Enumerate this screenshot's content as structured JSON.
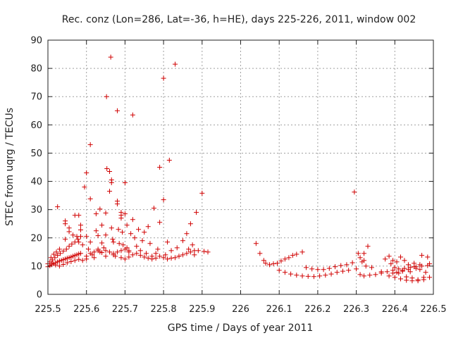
{
  "chart_data": {
    "type": "scatter",
    "title": "Rec. conz (Lon=286, Lat=-36, h=HE), days 225-226, 2011, window 002",
    "xlabel": "GPS time / Days of year 2011",
    "ylabel": "STEC from uqrg / TECUs",
    "xlim": [
      225.5,
      226.5
    ],
    "ylim": [
      0,
      90
    ],
    "grid": true,
    "marker": "+",
    "color": "#d00000",
    "xticks": [
      225.5,
      225.6,
      225.7,
      225.8,
      225.9,
      226.0,
      226.1,
      226.2,
      226.3,
      226.4,
      226.5
    ],
    "xtick_labels": [
      "225.5",
      "225.6",
      "225.7",
      "225.8",
      "225.9",
      "226",
      "226.1",
      "226.2",
      "226.3",
      "226.4",
      "226.5"
    ],
    "yticks": [
      0,
      10,
      20,
      30,
      40,
      50,
      60,
      70,
      80,
      90
    ],
    "ytick_labels": [
      "0",
      "10",
      "20",
      "30",
      "40",
      "50",
      "60",
      "70",
      "80",
      "90"
    ],
    "points": [
      [
        225.5,
        9.8
      ],
      [
        225.505,
        10.2
      ],
      [
        225.51,
        10.5
      ],
      [
        225.515,
        10.8
      ],
      [
        225.52,
        11.2
      ],
      [
        225.525,
        11.5
      ],
      [
        225.53,
        11.8
      ],
      [
        225.535,
        12.0
      ],
      [
        225.54,
        12.3
      ],
      [
        225.545,
        12.5
      ],
      [
        225.55,
        12.8
      ],
      [
        225.555,
        13.0
      ],
      [
        225.56,
        13.2
      ],
      [
        225.565,
        13.5
      ],
      [
        225.57,
        13.8
      ],
      [
        225.575,
        14.0
      ],
      [
        225.58,
        14.3
      ],
      [
        225.585,
        14.5
      ],
      [
        225.505,
        11.5
      ],
      [
        225.512,
        12.2
      ],
      [
        225.518,
        13.0
      ],
      [
        225.525,
        13.8
      ],
      [
        225.532,
        14.5
      ],
      [
        225.54,
        15.3
      ],
      [
        225.548,
        16.0
      ],
      [
        225.555,
        17.0
      ],
      [
        225.562,
        17.8
      ],
      [
        225.57,
        18.5
      ],
      [
        225.578,
        19.5
      ],
      [
        225.585,
        20.5
      ],
      [
        225.508,
        13.0
      ],
      [
        225.515,
        14.2
      ],
      [
        225.522,
        15.0
      ],
      [
        225.53,
        16.0
      ],
      [
        225.5,
        10.8
      ],
      [
        225.51,
        11.0
      ],
      [
        225.52,
        10.4
      ],
      [
        225.53,
        10.0
      ],
      [
        225.54,
        10.6
      ],
      [
        225.55,
        11.2
      ],
      [
        225.56,
        11.6
      ],
      [
        225.57,
        12.0
      ],
      [
        225.58,
        12.4
      ],
      [
        225.59,
        12.0
      ],
      [
        225.6,
        12.5
      ],
      [
        225.525,
        31.0
      ],
      [
        225.545,
        26.0
      ],
      [
        225.545,
        25.0
      ],
      [
        225.545,
        19.5
      ],
      [
        225.555,
        23.5
      ],
      [
        225.555,
        22.2
      ],
      [
        225.565,
        21.0
      ],
      [
        225.57,
        28.0
      ],
      [
        225.575,
        20.5
      ],
      [
        225.58,
        28.0
      ],
      [
        225.58,
        18.5
      ],
      [
        225.585,
        24.5
      ],
      [
        225.585,
        22.8
      ],
      [
        225.59,
        17.5
      ],
      [
        225.595,
        38.0
      ],
      [
        225.6,
        43.0
      ],
      [
        225.6,
        20.5
      ],
      [
        225.605,
        16.0
      ],
      [
        225.61,
        53.0
      ],
      [
        225.61,
        33.8
      ],
      [
        225.61,
        18.5
      ],
      [
        225.615,
        14.0
      ],
      [
        225.62,
        13.0
      ],
      [
        225.625,
        28.5
      ],
      [
        225.625,
        22.5
      ],
      [
        225.63,
        20.8
      ],
      [
        225.63,
        16.0
      ],
      [
        225.635,
        15.0
      ],
      [
        225.635,
        30.2
      ],
      [
        225.64,
        24.5
      ],
      [
        225.64,
        18.2
      ],
      [
        225.645,
        16.5
      ],
      [
        225.65,
        28.8
      ],
      [
        225.65,
        21.0
      ],
      [
        225.65,
        13.5
      ],
      [
        225.652,
        70.0
      ],
      [
        225.653,
        44.5
      ],
      [
        225.66,
        43.5
      ],
      [
        225.66,
        36.5
      ],
      [
        225.663,
        84.0
      ],
      [
        225.665,
        40.5
      ],
      [
        225.665,
        39.5
      ],
      [
        225.665,
        23.5
      ],
      [
        225.668,
        19.5
      ],
      [
        225.67,
        18.5
      ],
      [
        225.67,
        14.0
      ],
      [
        225.675,
        13.5
      ],
      [
        225.68,
        65.0
      ],
      [
        225.68,
        33.0
      ],
      [
        225.68,
        32.0
      ],
      [
        225.683,
        23.0
      ],
      [
        225.685,
        18.0
      ],
      [
        225.69,
        29.0
      ],
      [
        225.69,
        28.0
      ],
      [
        225.69,
        27.0
      ],
      [
        225.693,
        22.0
      ],
      [
        225.695,
        17.5
      ],
      [
        225.7,
        28.5
      ],
      [
        225.7,
        39.5
      ],
      [
        225.705,
        16.5
      ],
      [
        225.705,
        24.5
      ],
      [
        225.71,
        15.0
      ],
      [
        225.715,
        21.5
      ],
      [
        225.72,
        63.5
      ],
      [
        225.72,
        26.5
      ],
      [
        225.725,
        20.0
      ],
      [
        225.73,
        17.0
      ],
      [
        225.735,
        23.0
      ],
      [
        225.74,
        15.5
      ],
      [
        225.745,
        19.0
      ],
      [
        225.75,
        22.0
      ],
      [
        225.755,
        14.5
      ],
      [
        225.76,
        24.0
      ],
      [
        225.765,
        18.0
      ],
      [
        225.77,
        13.5
      ],
      [
        225.775,
        30.5
      ],
      [
        225.78,
        14.5
      ],
      [
        225.785,
        16.0
      ],
      [
        225.79,
        45.0
      ],
      [
        225.79,
        25.5
      ],
      [
        225.8,
        76.5
      ],
      [
        225.8,
        33.5
      ],
      [
        225.805,
        14.0
      ],
      [
        225.81,
        18.5
      ],
      [
        225.815,
        47.5
      ],
      [
        225.82,
        15.5
      ],
      [
        225.83,
        81.5
      ],
      [
        225.835,
        16.5
      ],
      [
        225.84,
        13.5
      ],
      [
        225.85,
        19.0
      ],
      [
        225.86,
        21.5
      ],
      [
        225.865,
        16.0
      ],
      [
        225.87,
        25.0
      ],
      [
        225.875,
        17.5
      ],
      [
        225.88,
        14.0
      ],
      [
        225.885,
        29.0
      ],
      [
        225.89,
        15.5
      ],
      [
        225.9,
        35.8
      ],
      [
        225.905,
        15.2
      ],
      [
        225.915,
        15.0
      ],
      [
        225.69,
        13.0
      ],
      [
        225.7,
        12.5
      ],
      [
        225.71,
        13.2
      ],
      [
        225.72,
        14.0
      ],
      [
        225.73,
        14.5
      ],
      [
        225.74,
        13.8
      ],
      [
        225.75,
        13.2
      ],
      [
        225.76,
        12.8
      ],
      [
        225.77,
        12.5
      ],
      [
        225.78,
        12.8
      ],
      [
        225.79,
        13.5
      ],
      [
        225.8,
        13.0
      ],
      [
        225.81,
        12.5
      ],
      [
        225.82,
        12.8
      ],
      [
        225.83,
        13.0
      ],
      [
        225.84,
        13.5
      ],
      [
        225.85,
        14.0
      ],
      [
        225.86,
        14.5
      ],
      [
        225.87,
        15.0
      ],
      [
        225.88,
        15.5
      ],
      [
        225.6,
        13.5
      ],
      [
        225.61,
        14.5
      ],
      [
        225.62,
        15.0
      ],
      [
        225.63,
        15.5
      ],
      [
        225.64,
        14.8
      ],
      [
        225.65,
        15.5
      ],
      [
        225.66,
        15.0
      ],
      [
        225.67,
        14.5
      ],
      [
        225.68,
        15.0
      ],
      [
        225.69,
        15.5
      ],
      [
        225.7,
        16.0
      ],
      [
        225.71,
        15.5
      ],
      [
        226.04,
        18.0
      ],
      [
        226.05,
        14.5
      ],
      [
        226.06,
        12.0
      ],
      [
        226.065,
        11.0
      ],
      [
        226.075,
        10.5
      ],
      [
        226.085,
        10.8
      ],
      [
        226.095,
        11.0
      ],
      [
        226.105,
        11.8
      ],
      [
        226.115,
        12.5
      ],
      [
        226.125,
        13.0
      ],
      [
        226.135,
        13.8
      ],
      [
        226.145,
        14.2
      ],
      [
        226.16,
        15.0
      ],
      [
        226.1,
        8.5
      ],
      [
        226.115,
        7.8
      ],
      [
        226.13,
        7.2
      ],
      [
        226.145,
        6.8
      ],
      [
        226.16,
        6.5
      ],
      [
        226.175,
        6.4
      ],
      [
        226.19,
        6.3
      ],
      [
        226.205,
        6.5
      ],
      [
        226.22,
        6.8
      ],
      [
        226.235,
        7.2
      ],
      [
        226.25,
        7.8
      ],
      [
        226.265,
        8.2
      ],
      [
        226.28,
        8.5
      ],
      [
        226.17,
        9.5
      ],
      [
        226.185,
        9.0
      ],
      [
        226.2,
        8.8
      ],
      [
        226.215,
        8.8
      ],
      [
        226.23,
        9.2
      ],
      [
        226.245,
        9.8
      ],
      [
        226.26,
        10.2
      ],
      [
        226.275,
        10.5
      ],
      [
        226.29,
        11.2
      ],
      [
        226.295,
        36.2
      ],
      [
        226.305,
        14.5
      ],
      [
        226.31,
        13.0
      ],
      [
        226.315,
        11.5
      ],
      [
        226.32,
        14.5
      ],
      [
        226.32,
        12.0
      ],
      [
        226.325,
        10.0
      ],
      [
        226.33,
        17.0
      ],
      [
        226.34,
        9.5
      ],
      [
        226.3,
        9.0
      ],
      [
        226.31,
        7.0
      ],
      [
        226.32,
        6.5
      ],
      [
        226.335,
        6.8
      ],
      [
        226.35,
        7.0
      ],
      [
        226.365,
        7.5
      ],
      [
        226.38,
        8.0
      ],
      [
        226.395,
        8.5
      ],
      [
        226.41,
        9.0
      ],
      [
        226.425,
        9.2
      ],
      [
        226.44,
        9.5
      ],
      [
        226.455,
        9.8
      ],
      [
        226.47,
        10.0
      ],
      [
        226.485,
        10.2
      ],
      [
        226.365,
        8.0
      ],
      [
        226.375,
        12.5
      ],
      [
        226.385,
        13.5
      ],
      [
        226.39,
        10.8
      ],
      [
        226.395,
        12.0
      ],
      [
        226.4,
        9.5
      ],
      [
        226.405,
        11.5
      ],
      [
        226.41,
        7.5
      ],
      [
        226.415,
        13.2
      ],
      [
        226.42,
        8.5
      ],
      [
        226.425,
        12.0
      ],
      [
        226.43,
        6.2
      ],
      [
        226.435,
        10.5
      ],
      [
        226.44,
        8.0
      ],
      [
        226.445,
        5.8
      ],
      [
        226.45,
        11.0
      ],
      [
        226.455,
        9.2
      ],
      [
        226.46,
        5.2
      ],
      [
        226.465,
        8.8
      ],
      [
        226.47,
        13.8
      ],
      [
        226.475,
        6.0
      ],
      [
        226.48,
        7.8
      ],
      [
        226.485,
        13.2
      ],
      [
        226.49,
        10.8
      ],
      [
        226.385,
        6.5
      ],
      [
        226.4,
        6.0
      ],
      [
        226.415,
        5.5
      ],
      [
        226.43,
        5.0
      ],
      [
        226.445,
        4.8
      ],
      [
        226.46,
        4.8
      ],
      [
        226.475,
        5.2
      ],
      [
        226.49,
        6.0
      ],
      [
        226.395,
        7.5
      ],
      [
        226.405,
        7.8
      ],
      [
        226.42,
        8.2
      ],
      [
        226.435,
        8.8
      ],
      [
        226.45,
        9.8
      ],
      [
        226.465,
        10.5
      ]
    ]
  }
}
